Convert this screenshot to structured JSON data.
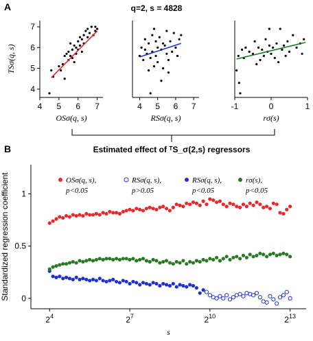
{
  "panels": {
    "a": "A",
    "b": "B"
  },
  "header_title": "q=2, s = 4828",
  "connector_title": "Estimated effect of ᵀS_σ(2,s) regressors",
  "colors": {
    "red": "#e8282a",
    "blue": "#1f2fd6",
    "green": "#2a7a25",
    "reg_red": "#e8282a",
    "reg_blue": "#1f2fd6",
    "reg_green": "#1e7a1e"
  },
  "chart_data": [
    {
      "type": "scatter",
      "id": "a1",
      "ylabel": "TSσ(q, s)",
      "xlabel": "OSσ(q, s)",
      "xlim": [
        4,
        7.3
      ],
      "ylim": [
        3.6,
        7.3
      ],
      "xticks": [
        4,
        5,
        6,
        7
      ],
      "yticks": [
        4,
        5,
        6,
        7
      ],
      "regression": {
        "x0": 4.6,
        "y0": 4.55,
        "x1": 7.0,
        "y1": 6.8,
        "color": "#e8282a"
      },
      "points": [
        [
          4.5,
          3.8
        ],
        [
          4.6,
          4.9
        ],
        [
          4.7,
          4.6
        ],
        [
          5.0,
          5.1
        ],
        [
          5.1,
          4.9
        ],
        [
          5.2,
          5.2
        ],
        [
          5.3,
          4.5
        ],
        [
          5.3,
          5.6
        ],
        [
          5.4,
          5.7
        ],
        [
          5.5,
          5.4
        ],
        [
          5.5,
          5.8
        ],
        [
          5.6,
          5.6
        ],
        [
          5.6,
          6.2
        ],
        [
          5.7,
          5.9
        ],
        [
          5.7,
          5.5
        ],
        [
          5.8,
          5.3
        ],
        [
          5.8,
          6.1
        ],
        [
          5.9,
          6.0
        ],
        [
          5.9,
          5.7
        ],
        [
          6.0,
          6.3
        ],
        [
          6.0,
          5.9
        ],
        [
          6.1,
          6.1
        ],
        [
          6.1,
          6.5
        ],
        [
          6.2,
          6.4
        ],
        [
          6.2,
          5.8
        ],
        [
          6.3,
          6.6
        ],
        [
          6.3,
          6.2
        ],
        [
          6.4,
          6.8
        ],
        [
          6.5,
          6.5
        ],
        [
          6.5,
          6.9
        ],
        [
          6.6,
          6.7
        ],
        [
          6.7,
          7.0
        ],
        [
          6.8,
          6.6
        ],
        [
          6.9,
          7.0
        ],
        [
          6.9,
          6.8
        ],
        [
          7.0,
          6.9
        ]
      ]
    },
    {
      "type": "scatter",
      "id": "a2",
      "xlabel": "RSσ(q, s)",
      "xlim": [
        3.6,
        7.3
      ],
      "ylim": [
        3.6,
        7.3
      ],
      "xticks": [
        4,
        5,
        6,
        7
      ],
      "regression": {
        "x0": 4.0,
        "y0": 5.55,
        "x1": 6.3,
        "y1": 6.2,
        "color": "#1f2fd6"
      },
      "points": [
        [
          4.0,
          5.6
        ],
        [
          4.1,
          6.0
        ],
        [
          4.2,
          5.4
        ],
        [
          4.3,
          5.9
        ],
        [
          4.3,
          6.4
        ],
        [
          4.4,
          5.7
        ],
        [
          4.5,
          6.2
        ],
        [
          4.5,
          4.9
        ],
        [
          4.6,
          5.5
        ],
        [
          4.7,
          6.6
        ],
        [
          4.7,
          5.8
        ],
        [
          4.8,
          6.9
        ],
        [
          4.8,
          5.1
        ],
        [
          4.9,
          6.3
        ],
        [
          4.9,
          5.6
        ],
        [
          5.0,
          6.0
        ],
        [
          5.0,
          5.3
        ],
        [
          5.1,
          6.5
        ],
        [
          5.2,
          5.9
        ],
        [
          5.2,
          4.4
        ],
        [
          5.3,
          6.2
        ],
        [
          5.3,
          5.0
        ],
        [
          5.4,
          6.1
        ],
        [
          5.5,
          5.7
        ],
        [
          5.5,
          6.8
        ],
        [
          5.6,
          5.4
        ],
        [
          5.7,
          6.3
        ],
        [
          5.8,
          5.8
        ],
        [
          5.9,
          6.7
        ],
        [
          6.0,
          6.0
        ],
        [
          6.1,
          5.6
        ],
        [
          6.2,
          6.4
        ],
        [
          6.3,
          6.6
        ],
        [
          4.6,
          3.8
        ],
        [
          5.6,
          4.8
        ]
      ]
    },
    {
      "type": "scatter",
      "id": "a3",
      "xlabel": "rσ(s)",
      "xlim": [
        -1,
        1
      ],
      "ylim": [
        3.6,
        7.3
      ],
      "xticks": [
        -1,
        0,
        1
      ],
      "regression": {
        "x0": -0.95,
        "y0": 5.45,
        "x1": 0.95,
        "y1": 6.25,
        "color": "#1e7a1e"
      },
      "points": [
        [
          -0.95,
          4.9
        ],
        [
          -0.9,
          5.6
        ],
        [
          -0.88,
          4.3
        ],
        [
          -0.85,
          3.8
        ],
        [
          -0.8,
          5.9
        ],
        [
          -0.75,
          5.5
        ],
        [
          -0.7,
          6.0
        ],
        [
          -0.6,
          5.8
        ],
        [
          -0.5,
          5.7
        ],
        [
          -0.45,
          6.3
        ],
        [
          -0.4,
          5.2
        ],
        [
          -0.35,
          6.0
        ],
        [
          -0.3,
          5.4
        ],
        [
          -0.25,
          5.9
        ],
        [
          -0.2,
          5.6
        ],
        [
          -0.15,
          6.4
        ],
        [
          -0.1,
          5.8
        ],
        [
          -0.05,
          6.1
        ],
        [
          0.0,
          5.7
        ],
        [
          0.05,
          6.0
        ],
        [
          0.1,
          5.5
        ],
        [
          0.15,
          6.2
        ],
        [
          0.2,
          5.3
        ],
        [
          0.25,
          6.9
        ],
        [
          0.3,
          5.9
        ],
        [
          0.35,
          6.1
        ],
        [
          0.4,
          5.6
        ],
        [
          0.45,
          6.3
        ],
        [
          0.5,
          5.8
        ],
        [
          0.6,
          6.6
        ],
        [
          0.7,
          6.0
        ],
        [
          0.8,
          6.2
        ],
        [
          0.85,
          5.7
        ],
        [
          0.9,
          6.4
        ],
        [
          -0.05,
          6.9
        ]
      ]
    },
    {
      "type": "scatter",
      "id": "b",
      "ylabel": "Standardized regression coefficient",
      "xlabel": "s",
      "xscale": "log2",
      "xlim": [
        3.3,
        13.6
      ],
      "ylim": [
        -0.1,
        1.28
      ],
      "xticks": [
        4,
        7,
        10,
        13
      ],
      "xtick_labels": [
        "2^4",
        "2^7",
        "2^10",
        "2^13"
      ],
      "yticks": [
        0,
        0.5,
        1
      ],
      "legend": [
        {
          "label": "OSσ(q, s),",
          "sub": "p<0.05",
          "filled": true,
          "color": "#e8282a"
        },
        {
          "label": "RSσ(q, s),",
          "sub": "p>0.05",
          "filled": false,
          "color": "#1f2fd6"
        },
        {
          "label": "RSσ(q, s),",
          "sub": "p<0.05",
          "filled": true,
          "color": "#1f2fd6"
        },
        {
          "label": "rσ(s),",
          "sub": "p<0.05",
          "filled": true,
          "color": "#2a7a25"
        }
      ],
      "series": [
        {
          "name": "OSσ(q, s)",
          "color": "#e8282a",
          "filled": true,
          "x": [
            4.0,
            4.125,
            4.25,
            4.375,
            4.5,
            4.625,
            4.75,
            4.875,
            5.0,
            5.125,
            5.25,
            5.375,
            5.5,
            5.625,
            5.75,
            5.875,
            6.0,
            6.125,
            6.25,
            6.375,
            6.5,
            6.625,
            6.75,
            6.875,
            7.0,
            7.125,
            7.25,
            7.375,
            7.5,
            7.625,
            7.75,
            7.875,
            8.0,
            8.125,
            8.25,
            8.375,
            8.5,
            8.625,
            8.75,
            8.875,
            9.0,
            9.125,
            9.25,
            9.375,
            9.5,
            9.625,
            9.75,
            9.875,
            10.0,
            10.125,
            10.25,
            10.375,
            10.5,
            10.625,
            10.75,
            10.875,
            11.0,
            11.125,
            11.25,
            11.375,
            11.5,
            11.625,
            11.75,
            11.875,
            12.0,
            12.125,
            12.25,
            12.375,
            12.5,
            12.625,
            12.75,
            12.875,
            13.0
          ],
          "y": [
            0.72,
            0.74,
            0.76,
            0.78,
            0.77,
            0.79,
            0.78,
            0.8,
            0.79,
            0.8,
            0.79,
            0.81,
            0.8,
            0.8,
            0.81,
            0.8,
            0.82,
            0.81,
            0.83,
            0.82,
            0.82,
            0.81,
            0.83,
            0.84,
            0.85,
            0.84,
            0.86,
            0.85,
            0.84,
            0.86,
            0.87,
            0.86,
            0.85,
            0.87,
            0.88,
            0.86,
            0.84,
            0.87,
            0.9,
            0.89,
            0.88,
            0.91,
            0.9,
            0.92,
            0.91,
            0.89,
            0.93,
            0.9,
            0.95,
            0.94,
            0.92,
            0.93,
            0.9,
            0.88,
            0.91,
            0.9,
            0.88,
            0.87,
            0.9,
            0.88,
            0.91,
            0.89,
            0.92,
            0.9,
            0.87,
            0.88,
            0.86,
            0.91,
            0.9,
            0.82,
            0.81,
            0.85,
            0.88
          ]
        },
        {
          "name": "RSσ(q, s) p<0.05",
          "color": "#1f2fd6",
          "filled": true,
          "x": [
            4.0,
            4.125,
            4.25,
            4.375,
            4.5,
            4.625,
            4.75,
            4.875,
            5.0,
            5.125,
            5.25,
            5.375,
            5.5,
            5.625,
            5.75,
            5.875,
            6.0,
            6.125,
            6.25,
            6.375,
            6.5,
            6.625,
            6.75,
            6.875,
            7.0,
            7.125,
            7.25,
            7.375,
            7.5,
            7.625,
            7.75,
            7.875,
            8.0,
            8.125,
            8.25,
            8.375,
            8.5,
            8.625,
            8.75,
            8.875,
            9.0,
            9.125,
            9.25,
            9.375,
            9.5,
            9.625,
            9.75
          ],
          "y": [
            0.26,
            0.21,
            0.2,
            0.21,
            0.19,
            0.2,
            0.19,
            0.18,
            0.2,
            0.18,
            0.19,
            0.18,
            0.17,
            0.18,
            0.17,
            0.19,
            0.17,
            0.16,
            0.17,
            0.18,
            0.16,
            0.15,
            0.17,
            0.16,
            0.14,
            0.16,
            0.15,
            0.13,
            0.15,
            0.14,
            0.13,
            0.15,
            0.14,
            0.12,
            0.14,
            0.13,
            0.12,
            0.14,
            0.11,
            0.13,
            0.12,
            0.11,
            0.13,
            0.12,
            0.1,
            0.05,
            0.08
          ]
        },
        {
          "name": "RSσ(q, s) p>0.05",
          "color": "#1f2fd6",
          "filled": false,
          "x": [
            9.875,
            10.0,
            10.125,
            10.25,
            10.375,
            10.5,
            10.625,
            10.75,
            10.875,
            11.0,
            11.125,
            11.25,
            11.375,
            11.5,
            11.625,
            11.75,
            11.875,
            12.0,
            12.125,
            12.25,
            12.375,
            12.5,
            12.625,
            12.75,
            12.875,
            13.0
          ],
          "y": [
            0.06,
            0.03,
            0.01,
            0.0,
            0.02,
            0.0,
            0.03,
            -0.01,
            0.01,
            0.03,
            0.04,
            0.02,
            0.05,
            0.04,
            0.03,
            0.05,
            0.01,
            -0.03,
            -0.04,
            0.02,
            -0.01,
            -0.05,
            0.01,
            0.03,
            0.06,
            0.0
          ]
        },
        {
          "name": "rσ(s)",
          "color": "#2a7a25",
          "filled": true,
          "x": [
            4.0,
            4.125,
            4.25,
            4.375,
            4.5,
            4.625,
            4.75,
            4.875,
            5.0,
            5.125,
            5.25,
            5.375,
            5.5,
            5.625,
            5.75,
            5.875,
            6.0,
            6.125,
            6.25,
            6.375,
            6.5,
            6.625,
            6.75,
            6.875,
            7.0,
            7.125,
            7.25,
            7.375,
            7.5,
            7.625,
            7.75,
            7.875,
            8.0,
            8.125,
            8.25,
            8.375,
            8.5,
            8.625,
            8.75,
            8.875,
            9.0,
            9.125,
            9.25,
            9.375,
            9.5,
            9.625,
            9.75,
            9.875,
            10.0,
            10.125,
            10.25,
            10.375,
            10.5,
            10.625,
            10.75,
            10.875,
            11.0,
            11.125,
            11.25,
            11.375,
            11.5,
            11.625,
            11.75,
            11.875,
            12.0,
            12.125,
            12.25,
            12.375,
            12.5,
            12.625,
            12.75,
            12.875,
            13.0
          ],
          "y": [
            0.28,
            0.3,
            0.31,
            0.32,
            0.33,
            0.33,
            0.34,
            0.35,
            0.34,
            0.36,
            0.35,
            0.36,
            0.37,
            0.36,
            0.37,
            0.38,
            0.37,
            0.38,
            0.38,
            0.37,
            0.38,
            0.37,
            0.38,
            0.38,
            0.37,
            0.38,
            0.36,
            0.37,
            0.38,
            0.36,
            0.35,
            0.37,
            0.36,
            0.34,
            0.35,
            0.36,
            0.34,
            0.33,
            0.35,
            0.34,
            0.36,
            0.33,
            0.35,
            0.34,
            0.36,
            0.35,
            0.37,
            0.36,
            0.38,
            0.37,
            0.39,
            0.36,
            0.38,
            0.4,
            0.37,
            0.39,
            0.4,
            0.38,
            0.41,
            0.39,
            0.42,
            0.4,
            0.41,
            0.43,
            0.42,
            0.4,
            0.42,
            0.43,
            0.41,
            0.42,
            0.43,
            0.42,
            0.4
          ]
        }
      ]
    }
  ]
}
